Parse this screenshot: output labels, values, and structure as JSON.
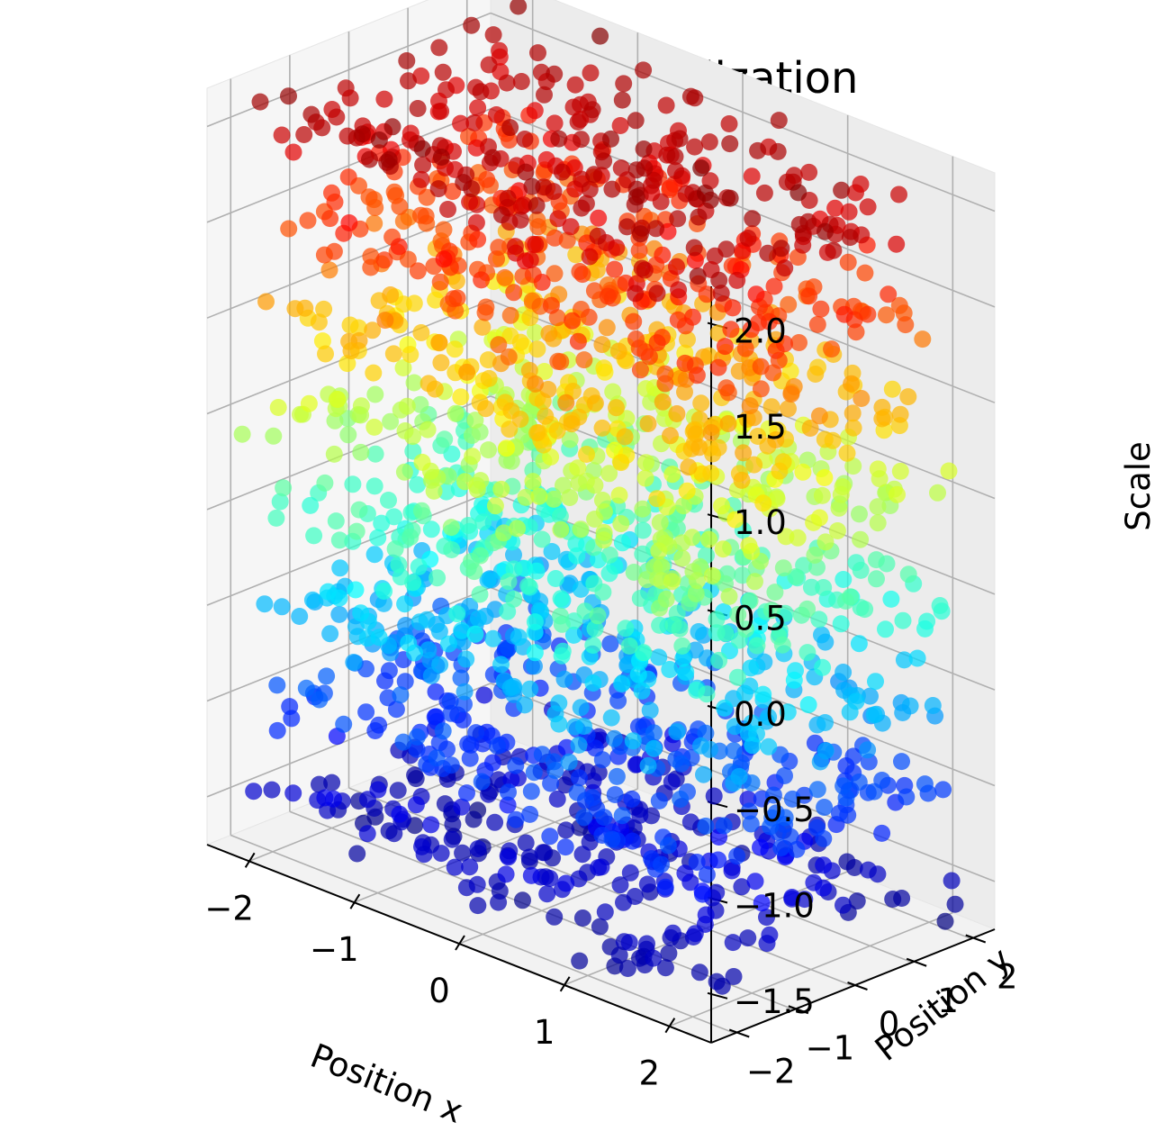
{
  "chart_data": {
    "type": "scatter",
    "dimension": "3d",
    "title": "Latent space visualization",
    "xlabel": "Position x",
    "ylabel": "Position y",
    "zlabel": "Scale",
    "xlim": [
      -2.4,
      2.4
    ],
    "ylim": [
      -2.4,
      2.4
    ],
    "zlim": [
      -1.75,
      2.2
    ],
    "x_ticks": [
      -2,
      -1,
      0,
      1,
      2
    ],
    "y_ticks": [
      -2,
      -1,
      0,
      1,
      2
    ],
    "z_ticks": [
      -1.5,
      -1.0,
      -0.5,
      0.0,
      0.5,
      1.0,
      1.5,
      2.0
    ],
    "x_tick_labels": [
      "−2",
      "−1",
      "0",
      "1",
      "2"
    ],
    "y_tick_labels": [
      "−2",
      "−1",
      "0",
      "1",
      "2"
    ],
    "z_tick_labels": [
      "−1.5",
      "−1.0",
      "−0.5",
      "0.0",
      "0.5",
      "1.0",
      "1.5",
      "2.0"
    ],
    "colormap": "jet",
    "color_by": "Scale",
    "marker": "circle",
    "alpha": 0.7,
    "grid": true,
    "layers": [
      {
        "z": -1.5,
        "count": 260
      },
      {
        "z": -1.0,
        "count": 260
      },
      {
        "z": -0.5,
        "count": 260
      },
      {
        "z": 0.0,
        "count": 260
      },
      {
        "z": 0.5,
        "count": 260
      },
      {
        "z": 1.0,
        "count": 260
      },
      {
        "z": 1.5,
        "count": 260
      },
      {
        "z": 2.0,
        "count": 260
      }
    ],
    "layer_xy_range": [
      -2.2,
      2.2
    ],
    "layer_z_jitter": 0.15
  }
}
